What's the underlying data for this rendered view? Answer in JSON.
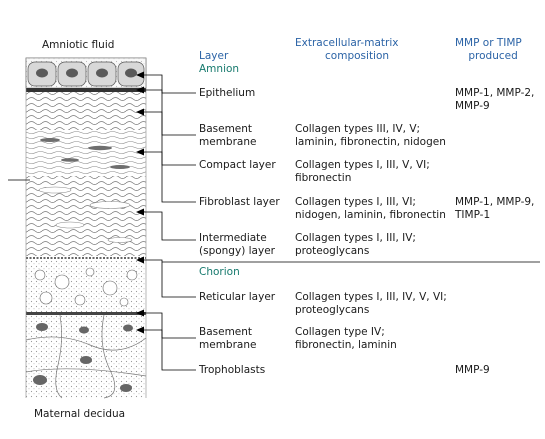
{
  "figure": {
    "top_caption": "Amniotic fluid",
    "bottom_caption": "Maternal decidua"
  },
  "headers": {
    "layer": "Layer",
    "ecm": "Extracellular-matrix\n         composition",
    "mmp": "MMP or TIMP\n    produced"
  },
  "sections": {
    "amnion": "Amnion",
    "chorion": "Chorion"
  },
  "rows": [
    {
      "layer": "Epithelium",
      "ecm": "",
      "mmp": "MMP-1, MMP-2,\nMMP-9"
    },
    {
      "layer": "Basement\nmembrane",
      "ecm": "Collagen types III, IV, V;\nlaminin, fibronectin, nidogen",
      "mmp": ""
    },
    {
      "layer": "Compact layer",
      "ecm": "Collagen types I, III, V, VI;\nfibronectin",
      "mmp": ""
    },
    {
      "layer": "Fibroblast layer",
      "ecm": "Collagen types I, III, VI;\nnidogen, laminin, fibronectin",
      "mmp": "MMP-1, MMP-9,\nTIMP-1"
    },
    {
      "layer": "Intermediate\n(spongy) layer",
      "ecm": "Collagen types I, III, IV;\nproteoglycans",
      "mmp": ""
    },
    {
      "layer": "Reticular layer",
      "ecm": "Collagen types I, III, IV, V, VI;\nproteoglycans",
      "mmp": ""
    },
    {
      "layer": "Basement\nmembrane",
      "ecm": "Collagen type IV;\nfibronectin, laminin",
      "mmp": ""
    },
    {
      "layer": "Trophoblasts",
      "ecm": "",
      "mmp": "MMP-9"
    }
  ]
}
